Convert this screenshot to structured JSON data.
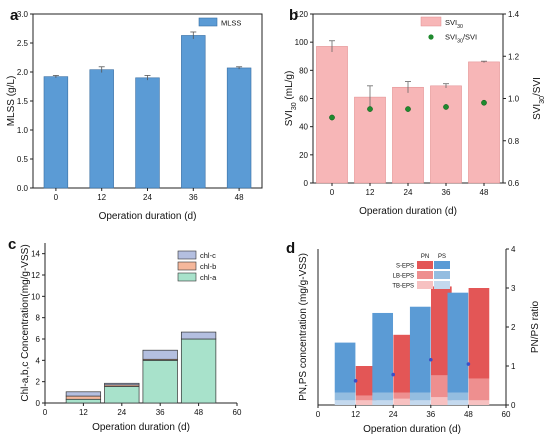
{
  "panels": [
    {
      "label": "a",
      "chart_data": {
        "type": "bar",
        "categories": [
          "0",
          "12",
          "24",
          "36",
          "48"
        ],
        "series": [
          {
            "name": "MLSS",
            "values": [
              1.92,
              2.04,
              1.9,
              2.63,
              2.07
            ],
            "errors": [
              0.02,
              0.05,
              0.04,
              0.06,
              0.02
            ]
          }
        ],
        "xlabel": "Operation duration (d)",
        "ylabel": "MLSS (g/L)",
        "ylim": [
          0,
          3.0
        ],
        "yticks": [
          "0.0",
          "0.5",
          "1.0",
          "1.5",
          "2.0",
          "2.5",
          "3.0"
        ],
        "legend": "top-right",
        "colors": {
          "bar": "#5b9bd5",
          "edge": "#3a6fa3"
        }
      }
    },
    {
      "label": "b",
      "chart_data": {
        "type": "bar",
        "categories": [
          "0",
          "12",
          "24",
          "36",
          "48"
        ],
        "series": [
          {
            "name": "SVI30",
            "values": [
              97,
              61,
              68,
              69,
              86
            ],
            "errors": [
              4,
              8,
              4,
              1.5,
              0.5
            ],
            "axis": "left"
          },
          {
            "name": "SVI30/SVI5",
            "values": [
              0.91,
              0.95,
              0.95,
              0.96,
              0.98
            ],
            "axis": "right",
            "type": "scatter"
          }
        ],
        "xlabel": "Operation duration (d)",
        "ylabel_left": "SVI30 (mL/g)",
        "ylabel_right": "SVI30/SVI5",
        "ylim_left": [
          0,
          120
        ],
        "ylim_right": [
          0.6,
          1.4
        ],
        "yticks_left": [
          "0",
          "20",
          "40",
          "60",
          "80",
          "100",
          "120"
        ],
        "yticks_right": [
          "0.6",
          "0.8",
          "1.0",
          "1.2",
          "1.4"
        ],
        "legend": "top-right",
        "colors": {
          "bar": "#f7b6b7",
          "edge": "#e08d8f",
          "dot": "#1f8a2e"
        }
      }
    },
    {
      "label": "c",
      "chart_data": {
        "type": "bar",
        "stacked": true,
        "x": [
          12,
          24,
          36,
          48
        ],
        "series": [
          {
            "name": "chl-a",
            "values": [
              0.35,
              1.55,
              4.0,
              6.0
            ]
          },
          {
            "name": "chl-b",
            "values": [
              0.3,
              0.15,
              0.1,
              0.0
            ]
          },
          {
            "name": "chl-c",
            "values": [
              0.4,
              0.15,
              0.85,
              0.65
            ]
          }
        ],
        "xlabel": "Operation duration (d)",
        "ylabel": "Chl-a,b,c Concentration(mg/g-VSS)",
        "xlim": [
          0,
          60
        ],
        "ylim": [
          0,
          15
        ],
        "xticks": [
          "0",
          "12",
          "24",
          "36",
          "48",
          "60"
        ],
        "yticks": [
          "0",
          "2",
          "4",
          "6",
          "8",
          "10",
          "12",
          "14"
        ],
        "legend": "top-right",
        "colors": {
          "chl-a": "#a8e2cb",
          "chl-b": "#f5b79b",
          "chl-c": "#b4bfe0"
        }
      }
    },
    {
      "label": "d",
      "chart_data": {
        "type": "bar",
        "stacked": true,
        "x": [
          12,
          24,
          36,
          48
        ],
        "groups": [
          "PN",
          "PS"
        ],
        "series": [
          {
            "name": "PS TB-EPS",
            "group": "PS",
            "values": [
              3,
              3,
              3,
              3
            ]
          },
          {
            "name": "PS LB-EPS",
            "group": "PS",
            "values": [
              5,
              5,
              5,
              5
            ]
          },
          {
            "name": "PS S-EPS",
            "group": "PS",
            "values": [
              32,
              51,
              55,
              64
            ]
          },
          {
            "name": "PN TB-EPS",
            "group": "PN",
            "values": [
              3,
              4,
              5,
              3
            ]
          },
          {
            "name": "PN LB-EPS",
            "group": "PN",
            "values": [
              3,
              4,
              14,
              14
            ]
          },
          {
            "name": "PN S-EPS",
            "group": "PN",
            "values": [
              19,
              37,
              57,
              58
            ]
          },
          {
            "name": "PN/PS ratio",
            "type": "scatter",
            "axis": "right",
            "values": [
              0.62,
              0.78,
              1.16,
              1.05
            ]
          }
        ],
        "xlabel": "Operation duration (d)",
        "ylabel_left": "PN,PS concentration (mg/g-VSS)",
        "ylabel_right": "PN/PS ratio",
        "xlim": [
          0,
          60
        ],
        "ylim_left": [
          0,
          100
        ],
        "ylim_right": [
          0,
          4
        ],
        "xticks": [
          "0",
          "12",
          "24",
          "36",
          "48",
          "60"
        ],
        "yticks_right": [
          "0",
          "1",
          "2",
          "3",
          "4"
        ],
        "legend": "top-left",
        "legend_rows": [
          "S-EPS",
          "LB-EPS",
          "TB-EPS"
        ],
        "colors": {
          "PN": [
            "#f7c1c1",
            "#ee8f8f",
            "#e35656"
          ],
          "PS": [
            "#c4d9ee",
            "#94bde0",
            "#5b9bd5"
          ],
          "dot": "#3d4fc7"
        }
      }
    }
  ]
}
